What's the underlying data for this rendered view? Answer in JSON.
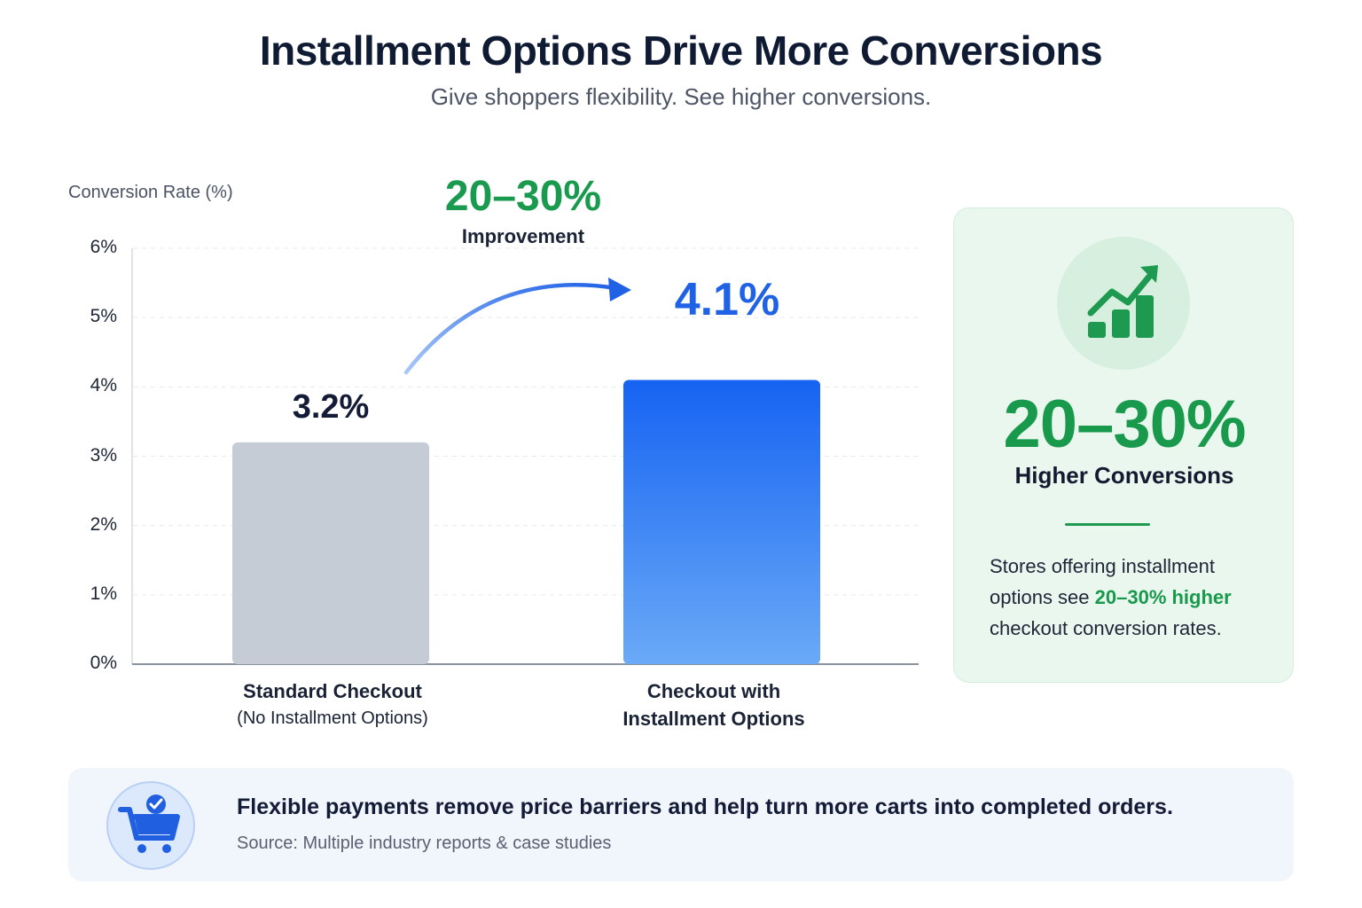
{
  "header": {
    "title": "Installment Options Drive More Conversions",
    "subtitle": "Give shoppers flexibility. See higher conversions."
  },
  "chart_data": {
    "type": "bar",
    "ylabel": "Conversion Rate (%)",
    "ylim": [
      0,
      6
    ],
    "yticks": [
      "0%",
      "1%",
      "2%",
      "3%",
      "4%",
      "5%",
      "6%"
    ],
    "grid": true,
    "categories": [
      {
        "main": "Standard Checkout",
        "sub": "(No Installment Options)"
      },
      {
        "main": "Checkout with",
        "sub": "Installment Options"
      }
    ],
    "values": [
      3.2,
      4.1
    ],
    "value_labels": [
      "3.2%",
      "4.1%"
    ],
    "bar_colors": [
      "#c6ccd6",
      "#1f6af0"
    ],
    "annotation": {
      "value": "20–30%",
      "label": "Improvement"
    }
  },
  "side_card": {
    "icon": "chart-growth-icon",
    "big_value": "20–30%",
    "big_label": "Higher Conversions",
    "text_before": "Stores offering installment options see ",
    "text_highlight": "20–30% higher",
    "text_after": " checkout conversion rates."
  },
  "banner": {
    "icon": "shopping-cart-check-icon",
    "message": "Flexible payments remove price barriers and help turn more carts into completed orders.",
    "source": "Source: Multiple industry reports & case studies"
  },
  "colors": {
    "accent_green": "#18994c",
    "accent_blue": "#1f62e6",
    "title": "#0f1a33"
  }
}
